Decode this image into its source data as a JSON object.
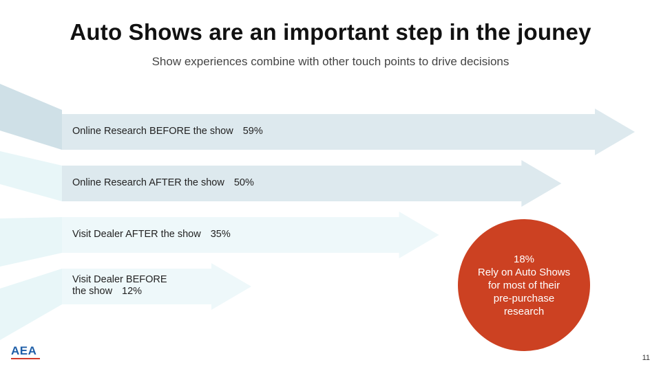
{
  "title": "Auto Shows are an important step in the jouney",
  "subtitle": "Show experiences combine with other touch points to drive decisions",
  "chart_data": {
    "type": "bar",
    "categories": [
      "Online Research BEFORE the show",
      "Online Research AFTER the show",
      "Visit Dealer AFTER the show",
      "Visit Dealer BEFORE the show"
    ],
    "values": [
      59,
      50,
      35,
      12
    ],
    "unit": "%"
  },
  "bars": [
    {
      "label": "Online Research BEFORE the show",
      "pct": "59%"
    },
    {
      "label": "Online Research AFTER the show",
      "pct": "50%"
    },
    {
      "label": "Visit Dealer AFTER the show",
      "pct": "35%"
    },
    {
      "label_line1": "Visit Dealer BEFORE",
      "label_line2": "the show",
      "pct": "12%"
    }
  ],
  "callout": {
    "value": "18%",
    "line1": "Rely on Auto Shows",
    "line2": "for most of their",
    "line3": "pre-purchase",
    "line4": "research",
    "color": "#cc4122"
  },
  "logo": {
    "text": "AEA"
  },
  "page_number": "11",
  "colors": {
    "arrow_dark": "#dde9ee",
    "arrow_light": "#eef8fa",
    "stream_dark": "#cfe0e7",
    "stream_light": "#e8f6f8"
  }
}
